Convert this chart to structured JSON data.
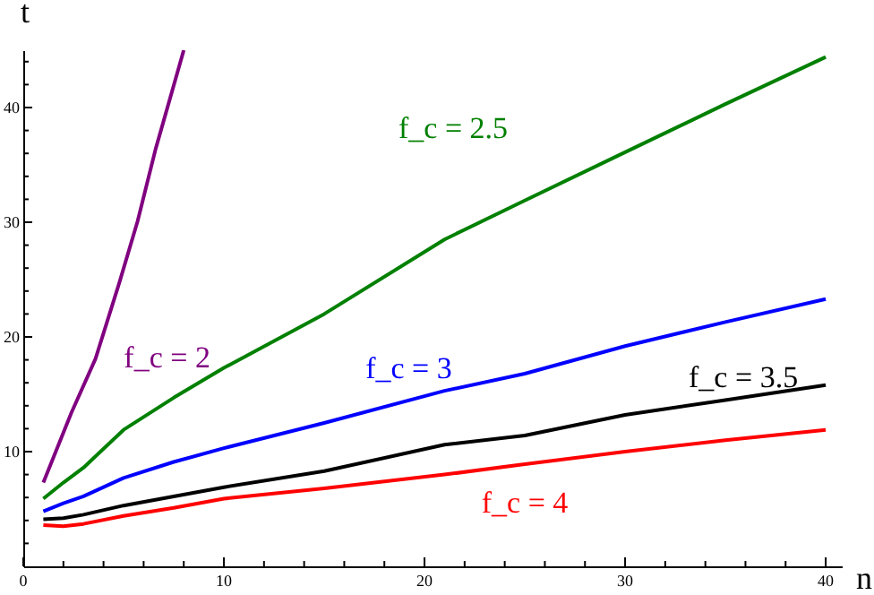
{
  "chart_data": {
    "type": "line",
    "xlabel": "n",
    "ylabel": "t",
    "x": [
      1,
      2,
      3,
      5,
      7.5,
      10,
      15,
      21,
      25,
      30,
      35,
      40
    ],
    "series": [
      {
        "name": "f_c = 2",
        "color": "#800080",
        "x": [
          1,
          2.4,
          3.6,
          4.8,
          5.7,
          6.6,
          8
        ],
        "values": [
          7.3,
          13.4,
          18.1,
          24.8,
          30.1,
          36.4,
          45
        ]
      },
      {
        "name": "f_c = 2.5",
        "color": "#008000",
        "values": [
          5.9,
          7.3,
          8.6,
          11.9,
          14.7,
          17.3,
          22.0,
          28.5,
          31.9,
          36.1,
          40.3,
          44.4
        ]
      },
      {
        "name": "f_c = 3",
        "color": "#0000ff",
        "values": [
          4.8,
          5.5,
          6.1,
          7.7,
          9.1,
          10.3,
          12.5,
          15.3,
          16.8,
          19.2,
          21.3,
          23.3
        ]
      },
      {
        "name": "f_c = 3.5",
        "color": "#000000",
        "values": [
          4.1,
          4.2,
          4.5,
          5.3,
          6.1,
          6.9,
          8.3,
          10.6,
          11.4,
          13.2,
          14.5,
          15.8
        ]
      },
      {
        "name": "f_c = 4",
        "color": "#ff0000",
        "values": [
          3.6,
          3.5,
          3.7,
          4.4,
          5.1,
          5.9,
          6.8,
          8.0,
          8.9,
          10.0,
          11.0,
          11.9
        ]
      }
    ],
    "xlim": [
      0,
      40.8
    ],
    "ylim": [
      0,
      45
    ],
    "xticks": [
      0,
      {
        "value": 2,
        "label": null
      },
      {
        "value": 4,
        "label": null
      },
      {
        "value": 6,
        "label": null
      },
      {
        "value": 8,
        "label": null
      },
      10,
      {
        "value": 12,
        "label": null
      },
      {
        "value": 14,
        "label": null
      },
      {
        "value": 16,
        "label": null
      },
      {
        "value": 18,
        "label": null
      },
      20,
      {
        "value": 22,
        "label": null
      },
      {
        "value": 24,
        "label": null
      },
      {
        "value": 26,
        "label": null
      },
      {
        "value": 28,
        "label": null
      },
      30,
      {
        "value": 32,
        "label": null
      },
      {
        "value": 34,
        "label": null
      },
      {
        "value": 36,
        "label": null
      },
      {
        "value": 38,
        "label": null
      },
      40
    ],
    "yticks": [
      {
        "value": 2,
        "label": null
      },
      {
        "value": 4,
        "label": null
      },
      {
        "value": 6,
        "label": null
      },
      {
        "value": 8,
        "label": null
      },
      10,
      {
        "value": 12,
        "label": null
      },
      {
        "value": 14,
        "label": null
      },
      {
        "value": 16,
        "label": null
      },
      {
        "value": 18,
        "label": null
      },
      20,
      {
        "value": 22,
        "label": null
      },
      {
        "value": 24,
        "label": null
      },
      {
        "value": 26,
        "label": null
      },
      {
        "value": 28,
        "label": null
      },
      30,
      {
        "value": 32,
        "label": null
      },
      {
        "value": 34,
        "label": null
      },
      {
        "value": 36,
        "label": null
      },
      {
        "value": 38,
        "label": null
      },
      40,
      {
        "value": 42,
        "label": null
      },
      {
        "value": 44,
        "label": null
      }
    ],
    "grid": false,
    "legend": false,
    "marker": "none",
    "line_style": "solid"
  }
}
